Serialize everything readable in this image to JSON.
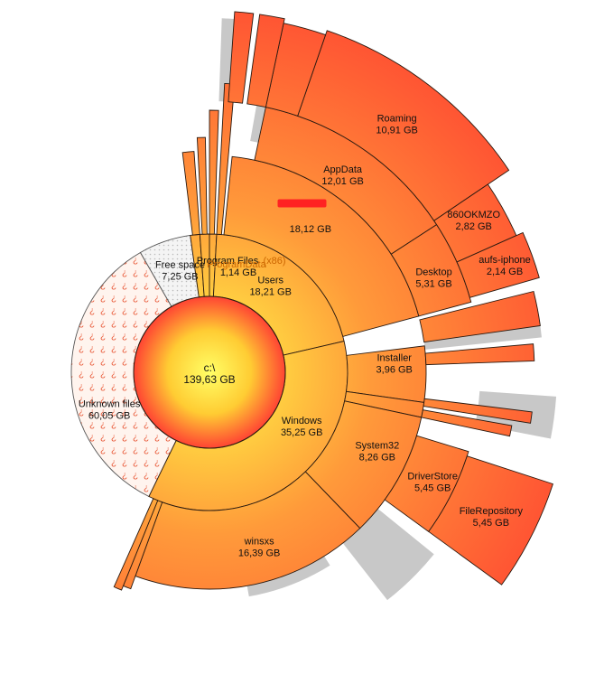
{
  "chart_data": {
    "type": "sunburst",
    "root": {
      "label": "c:\\",
      "value_label": "139,63 GB",
      "value_gb": 139.63
    },
    "unit": "GB",
    "colors": {
      "ring_inner": "#ffee44",
      "ring_outer": "#ff5533",
      "hatch_fg": "#e85533",
      "hatch_bg": "#fff4ee",
      "free_bg": "#f4f4f4",
      "free_dot": "#bbbbbb"
    },
    "level1": [
      {
        "name": "Free space",
        "value_label": "7,25 GB",
        "value_gb": 7.25,
        "style": "free"
      },
      {
        "name": "Unknown files",
        "value_label": "60,05 GB",
        "value_gb": 60.05,
        "style": "unknown"
      },
      {
        "name": "Windows",
        "value_label": "35,25 GB",
        "value_gb": 35.25
      },
      {
        "name": "Users",
        "value_label": "18,21 GB",
        "value_gb": 18.21
      },
      {
        "name": "ProgramData",
        "value_label": "",
        "value_gb": 1.2
      },
      {
        "name": "Program Files (x86)",
        "value_label": "",
        "value_gb": 1.1
      },
      {
        "name": "Program Files",
        "value_label": "1,14 GB",
        "value_gb": 1.14
      }
    ],
    "level1_overlap_labels": {
      "program_files": "Program Files",
      "program_files_x86": "(x86)",
      "program_data": "ProgramData",
      "program_files_value": "1,14 GB"
    },
    "level2": [
      {
        "name": "Installer",
        "value_label": "3,96 GB",
        "value_gb": 3.96,
        "parent": "Windows"
      },
      {
        "name": "System32",
        "value_label": "8,26 GB",
        "value_gb": 8.26,
        "parent": "Windows"
      },
      {
        "name": "winsxs",
        "value_label": "16,39 GB",
        "value_gb": 16.39,
        "parent": "Windows"
      },
      {
        "name": "",
        "value_label": "18,12 GB",
        "value_gb": 18.12,
        "parent": "Users",
        "redacted": true
      }
    ],
    "level3": [
      {
        "name": "DriverStore",
        "value_label": "5,45 GB",
        "value_gb": 5.45,
        "parent": "System32"
      },
      {
        "name": "AppData",
        "value_label": "12,01 GB",
        "value_gb": 12.01,
        "parent": "user"
      },
      {
        "name": "Desktop",
        "value_label": "5,31 GB",
        "value_gb": 5.31,
        "parent": "user"
      }
    ],
    "level4": [
      {
        "name": "FileRepository",
        "value_label": "5,45 GB",
        "value_gb": 5.45,
        "parent": "DriverStore"
      },
      {
        "name": "Roaming",
        "value_label": "10,91 GB",
        "value_gb": 10.91,
        "parent": "AppData"
      },
      {
        "name": "860OKMZO",
        "value_label": "2,82 GB",
        "value_gb": 2.82,
        "parent": "Desktop"
      },
      {
        "name": "aufs-iphone",
        "value_label": "2,14 GB",
        "value_gb": 2.14,
        "parent": "Desktop"
      }
    ]
  }
}
